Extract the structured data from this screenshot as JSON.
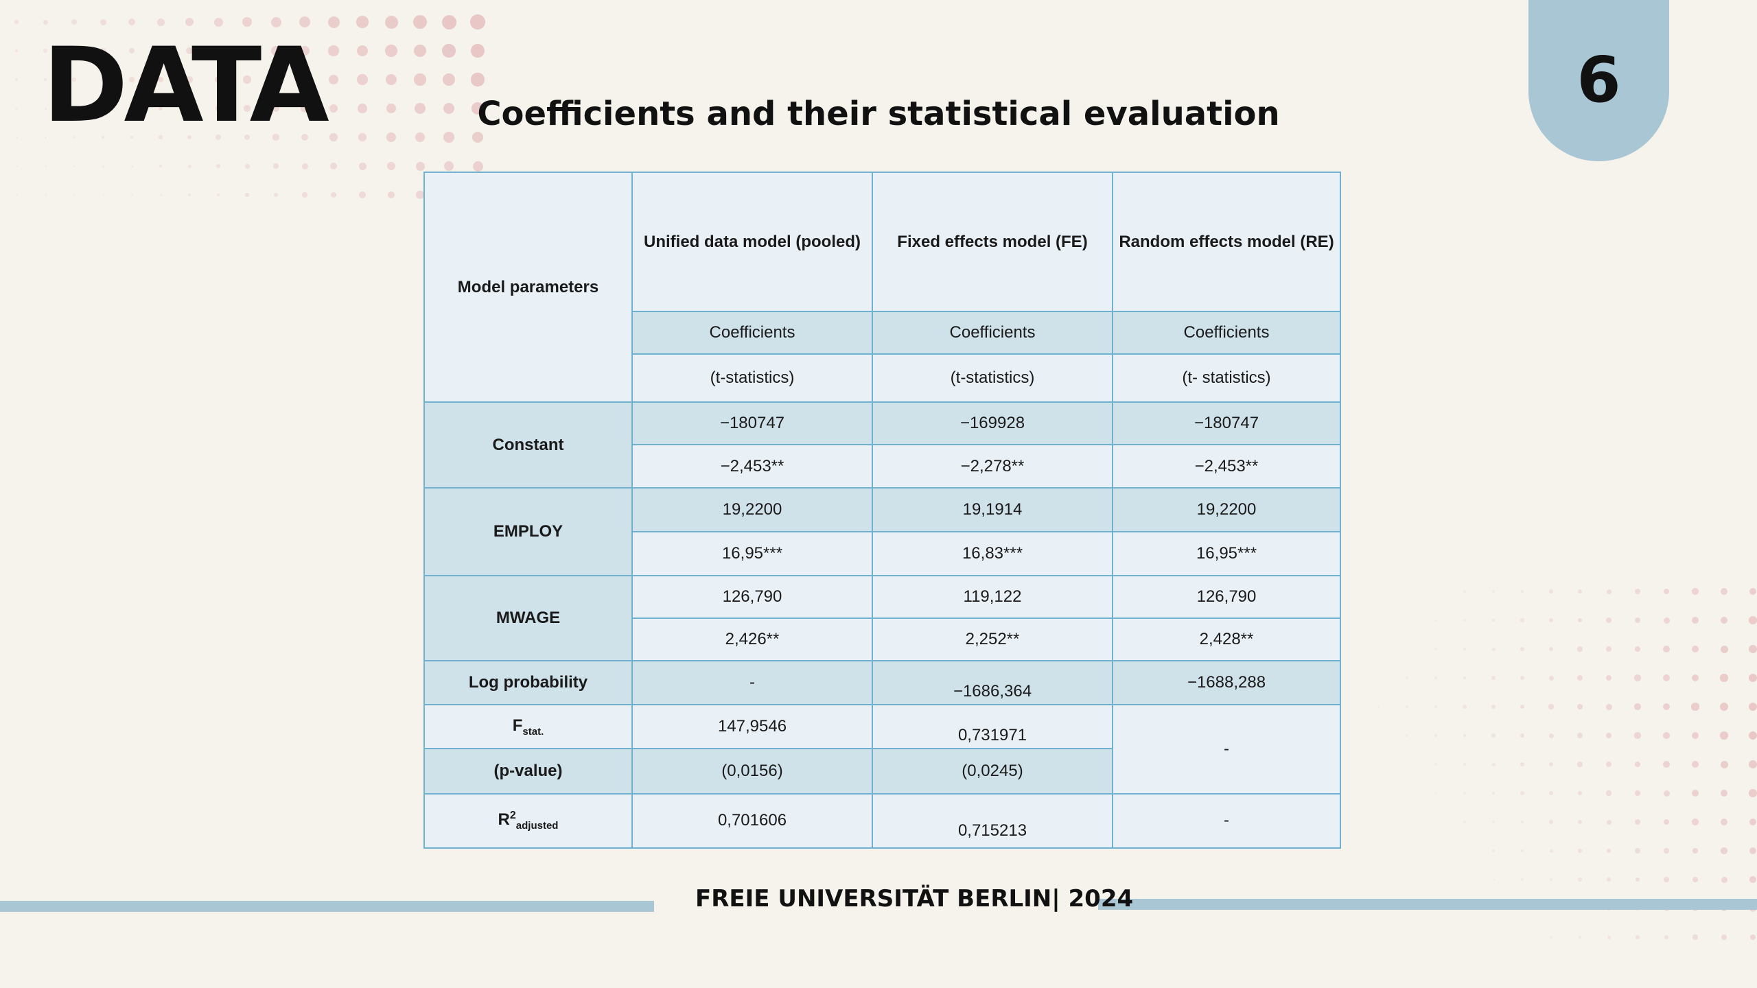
{
  "header": {
    "heading": "DATA",
    "page_number": "6"
  },
  "title": "Coefficients and their statistical evaluation",
  "table": {
    "corner": "Model parameters",
    "models": [
      "Unified data model (pooled)",
      "Fixed effects model (FE)",
      "Random effects model (RE)"
    ],
    "coef_label": "Coefficients",
    "tstat_labels": [
      "(t-statistics)",
      "(t-statistics)",
      "(t- statistics)"
    ],
    "rows": {
      "constant": {
        "label": "Constant",
        "coef": [
          "−180747",
          "−169928",
          "−180747"
        ],
        "tstat": [
          "−2,453**",
          "−2,278**",
          "−2,453**"
        ]
      },
      "employ": {
        "label": "EMPLOY",
        "coef": [
          "19,2200",
          "19,1914",
          "19,2200"
        ],
        "tstat": [
          "16,95***",
          "16,83***",
          "16,95***"
        ]
      },
      "mwage": {
        "label": "MWAGE",
        "coef": [
          "126,790",
          "119,122",
          "126,790"
        ],
        "tstat": [
          "2,426**",
          "2,252**",
          "2,428**"
        ]
      },
      "logprob": {
        "label": "Log probability",
        "values": [
          "-",
          "−1686,364",
          "−1688,288"
        ]
      },
      "fstat": {
        "label_main": "F",
        "label_sub": "stat.",
        "values": [
          "147,9546",
          "0,731971",
          "-"
        ]
      },
      "pvalue": {
        "label": "(p-value)",
        "values": [
          "(0,0156)",
          "(0,0245)"
        ]
      },
      "r2": {
        "label_main": "R",
        "label_sup": "2",
        "label_sub": "adjusted",
        "values": [
          "0,701606",
          "0,715213",
          "-"
        ]
      }
    }
  },
  "footer": {
    "text": "FREIE UNIVERSITÄT BERLIN| 2024"
  },
  "colors": {
    "background": "#f6f3ed",
    "accent_blue": "#a9c6d5",
    "table_border": "#6fb1cf",
    "row_light": "#eaf1f6",
    "row_mid": "#cfe1e9",
    "dots_pink": "#e7c4c4"
  }
}
